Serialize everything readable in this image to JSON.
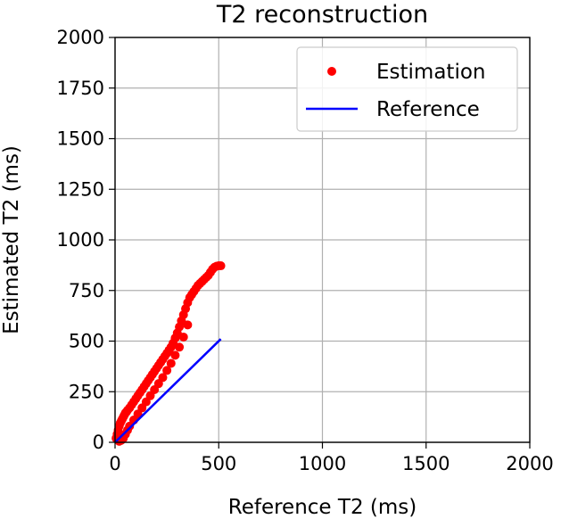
{
  "chart_data": {
    "type": "scatter",
    "title": "T2 reconstruction",
    "xlabel": "Reference T2 (ms)",
    "ylabel": "Estimated T2 (ms)",
    "xlim": [
      0,
      2000
    ],
    "ylim": [
      0,
      2000
    ],
    "xticks": [
      "0",
      "500",
      "1000",
      "1500",
      "2000"
    ],
    "yticks": [
      "0",
      "250",
      "500",
      "750",
      "1000",
      "1250",
      "1500",
      "1750",
      "2000"
    ],
    "grid": true,
    "legend_position": "top-right",
    "series": [
      {
        "name": "Estimation",
        "kind": "scatter",
        "color": "#ff0000",
        "x": [
          5,
          10,
          15,
          20,
          25,
          30,
          35,
          40,
          45,
          50,
          55,
          60,
          70,
          80,
          90,
          100,
          110,
          120,
          130,
          140,
          150,
          160,
          170,
          180,
          190,
          200,
          210,
          220,
          230,
          240,
          250,
          260,
          270,
          280,
          290,
          300,
          310,
          320,
          330,
          340,
          350,
          360,
          370,
          380,
          390,
          400,
          410,
          420,
          430,
          440,
          450,
          460,
          470,
          480,
          490,
          500,
          510,
          20,
          30,
          40,
          50,
          60,
          70,
          90,
          110,
          130,
          150,
          170,
          190,
          210,
          230,
          250,
          270,
          290,
          310,
          330,
          350
        ],
        "y": [
          20,
          40,
          60,
          80,
          95,
          105,
          115,
          125,
          135,
          145,
          150,
          158,
          170,
          185,
          200,
          215,
          230,
          245,
          260,
          275,
          290,
          305,
          320,
          335,
          350,
          365,
          380,
          395,
          410,
          425,
          440,
          455,
          470,
          490,
          515,
          540,
          570,
          600,
          630,
          660,
          690,
          715,
          730,
          745,
          760,
          775,
          785,
          795,
          805,
          815,
          825,
          840,
          855,
          865,
          870,
          872,
          872,
          5,
          10,
          20,
          40,
          60,
          80,
          110,
          140,
          170,
          200,
          230,
          260,
          290,
          320,
          355,
          390,
          430,
          470,
          520,
          580
        ]
      },
      {
        "name": "Reference",
        "kind": "line",
        "color": "#0000ff",
        "x": [
          0,
          510
        ],
        "y": [
          0,
          510
        ]
      }
    ]
  }
}
